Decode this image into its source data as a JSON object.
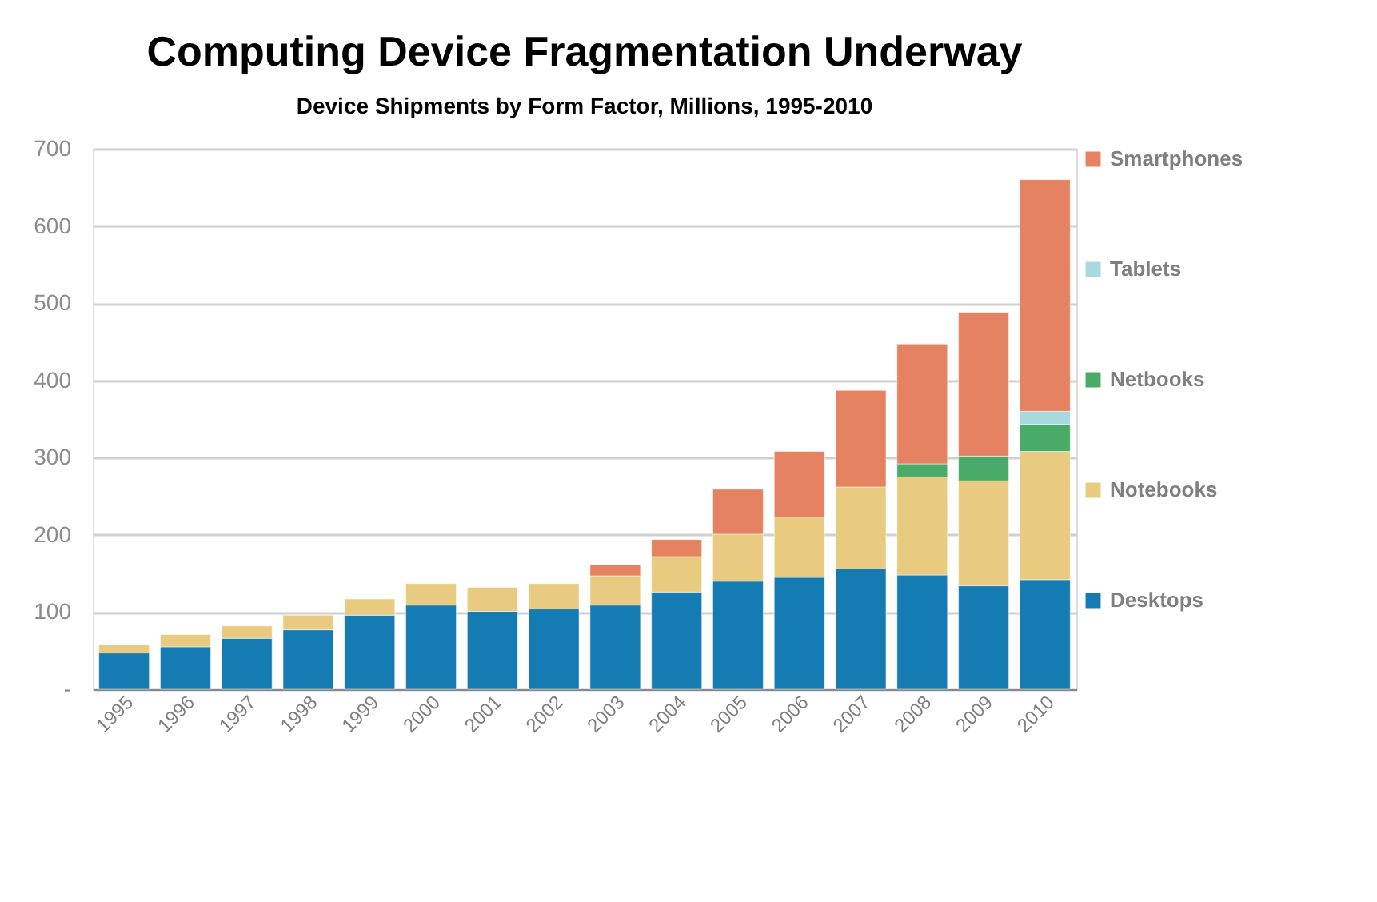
{
  "chart_data": {
    "type": "bar",
    "title": "Computing Device Fragmentation Underway",
    "subtitle": "Device Shipments by Form Factor, Millions, 1995-2010",
    "categories": [
      "1995",
      "1996",
      "1997",
      "1998",
      "1999",
      "2000",
      "2001",
      "2002",
      "2003",
      "2004",
      "2005",
      "2006",
      "2007",
      "2008",
      "2009",
      "2010"
    ],
    "stacked": true,
    "series": [
      {
        "name": "Desktops",
        "color": "#157bb3",
        "values": [
          47,
          55,
          66,
          77,
          96,
          109,
          101,
          104,
          109,
          126,
          140,
          145,
          156,
          148,
          134,
          142
        ]
      },
      {
        "name": "Notebooks",
        "color": "#e8ca80",
        "values": [
          11,
          16,
          16,
          19,
          21,
          28,
          31,
          33,
          38,
          46,
          61,
          78,
          106,
          127,
          136,
          166
        ]
      },
      {
        "name": "Netbooks",
        "color": "#4aaa68",
        "values": [
          null,
          null,
          null,
          null,
          null,
          null,
          null,
          null,
          null,
          null,
          null,
          null,
          null,
          17,
          32,
          35
        ]
      },
      {
        "name": "Tablets",
        "color": "#a8d8e0",
        "values": [
          null,
          null,
          null,
          null,
          null,
          null,
          null,
          null,
          null,
          null,
          null,
          null,
          null,
          null,
          null,
          17
        ]
      },
      {
        "name": "Smartphones",
        "color": "#e58262",
        "values": [
          null,
          null,
          null,
          null,
          null,
          null,
          null,
          null,
          14,
          22,
          58,
          85,
          125,
          155,
          186,
          300
        ]
      }
    ],
    "ylim": [
      0,
      700
    ],
    "yticks": [
      {
        "value": 0,
        "label": "-"
      },
      100,
      200,
      300,
      400,
      500,
      600,
      700
    ],
    "grid": "y",
    "legend": "right"
  }
}
